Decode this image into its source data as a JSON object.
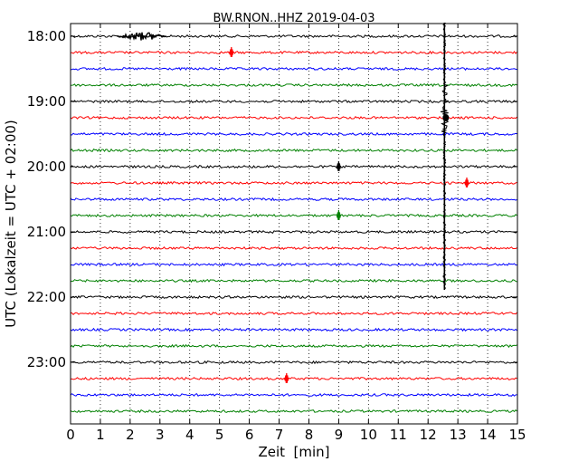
{
  "chart_data": {
    "type": "line",
    "title": "BW.RNON..HHZ 2019-04-03",
    "xlabel": "Zeit  [min]",
    "ylabel": "UTC (Lokalzeit = UTC + 02:00)",
    "xlim": [
      0,
      15
    ],
    "x_ticks": [
      "0",
      "1",
      "2",
      "3",
      "4",
      "5",
      "6",
      "7",
      "8",
      "9",
      "10",
      "11",
      "12",
      "13",
      "14",
      "15"
    ],
    "y_tick_labels": [
      "18:00",
      "19:00",
      "20:00",
      "21:00",
      "22:00",
      "23:00"
    ],
    "trace_colors": [
      "#000000",
      "#ff0000",
      "#0000ff",
      "#008000"
    ],
    "traces": [
      {
        "start": "18:00",
        "color": "#000000"
      },
      {
        "start": "18:15",
        "color": "#ff0000"
      },
      {
        "start": "18:30",
        "color": "#0000ff"
      },
      {
        "start": "18:45",
        "color": "#008000"
      },
      {
        "start": "19:00",
        "color": "#000000"
      },
      {
        "start": "19:15",
        "color": "#ff0000"
      },
      {
        "start": "19:30",
        "color": "#0000ff"
      },
      {
        "start": "19:45",
        "color": "#008000"
      },
      {
        "start": "20:00",
        "color": "#000000"
      },
      {
        "start": "20:15",
        "color": "#ff0000"
      },
      {
        "start": "20:30",
        "color": "#0000ff"
      },
      {
        "start": "20:45",
        "color": "#008000"
      },
      {
        "start": "21:00",
        "color": "#000000"
      },
      {
        "start": "21:15",
        "color": "#ff0000"
      },
      {
        "start": "21:30",
        "color": "#0000ff"
      },
      {
        "start": "21:45",
        "color": "#008000"
      },
      {
        "start": "22:00",
        "color": "#000000"
      },
      {
        "start": "22:15",
        "color": "#ff0000"
      },
      {
        "start": "22:30",
        "color": "#0000ff"
      },
      {
        "start": "22:45",
        "color": "#008000"
      },
      {
        "start": "23:00",
        "color": "#000000"
      },
      {
        "start": "23:15",
        "color": "#ff0000"
      },
      {
        "start": "23:30",
        "color": "#0000ff"
      },
      {
        "start": "23:45",
        "color": "#008000"
      }
    ],
    "events": [
      {
        "trace": "18:00",
        "x": 2.4,
        "kind": "noise-burst"
      },
      {
        "trace": "18:15",
        "x": 5.4,
        "kind": "spike"
      },
      {
        "trace": "20:00",
        "x": 9.0,
        "kind": "spike"
      },
      {
        "trace": "20:15",
        "x": 13.3,
        "kind": "spike"
      },
      {
        "trace": "20:45",
        "x": 9.0,
        "kind": "spike"
      },
      {
        "trace": "23:15",
        "x": 7.25,
        "kind": "spike"
      },
      {
        "trace": "18:00",
        "x": 12.55,
        "kind": "earthquake",
        "through": "21:45"
      }
    ],
    "grid": "x-dotted"
  }
}
